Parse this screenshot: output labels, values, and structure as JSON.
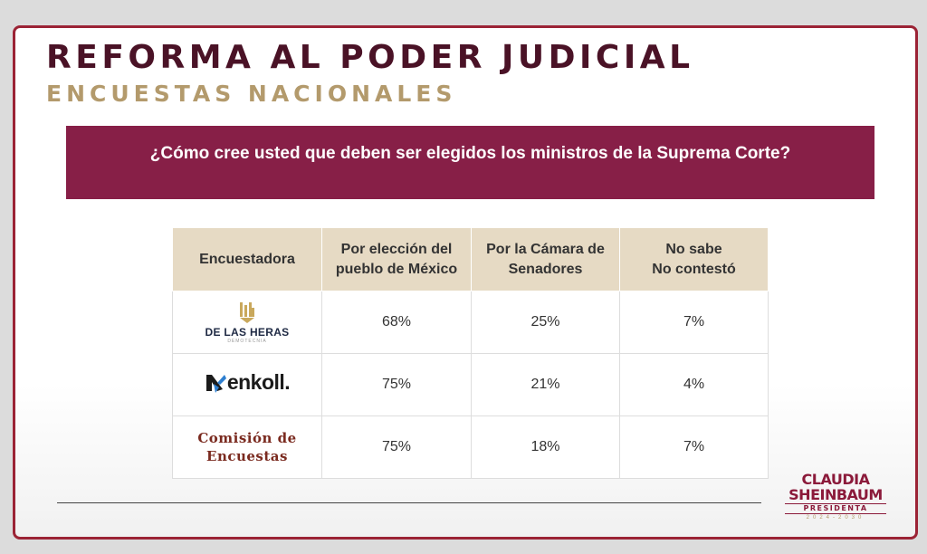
{
  "title": "REFORMA AL PODER JUDICIAL",
  "subtitle": "ENCUESTAS NACIONALES",
  "question": "¿Cómo cree usted que deben ser elegidos los ministros de la Suprema Corte?",
  "table": {
    "headers": [
      [
        "Encuestadora"
      ],
      [
        "Por elección del",
        "pueblo de México"
      ],
      [
        "Por la Cámara de",
        "Senadores"
      ],
      [
        "No sabe",
        "No contestó"
      ]
    ],
    "rows": [
      {
        "pollster": "De Las Heras",
        "logo_text": "DE LAS HERAS",
        "logo_tagline": "DEMOTECNIA",
        "values": [
          "68%",
          "25%",
          "7%"
        ]
      },
      {
        "pollster": "Enkoll",
        "logo_text": "enkoll.",
        "values": [
          "75%",
          "21%",
          "4%"
        ]
      },
      {
        "pollster": "Comisión de Encuestas",
        "logo_lines": [
          "Comisión de",
          "Encuestas"
        ],
        "values": [
          "75%",
          "18%",
          "7%"
        ]
      }
    ]
  },
  "brand": {
    "line1": "CLAUDIA",
    "line2": "SHEINBAUM",
    "line3": "PRESIDENTA",
    "line4": "2024-2030"
  },
  "colors": {
    "title": "#4a1226",
    "subtitle": "#b39a6c",
    "banner": "#871f47",
    "table_header": "#e6dac4",
    "frame": "#9b2335"
  }
}
